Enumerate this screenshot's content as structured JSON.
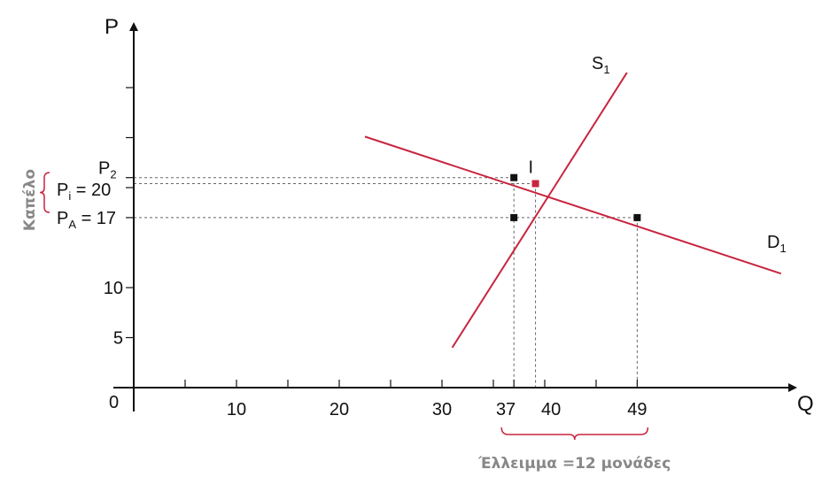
{
  "chart_data": {
    "type": "line",
    "xlabel": "Q",
    "ylabel": "P",
    "origin_label": "0",
    "x_ticks": [
      {
        "value": 5,
        "label": ""
      },
      {
        "value": 10,
        "label": "10"
      },
      {
        "value": 15,
        "label": ""
      },
      {
        "value": 20,
        "label": "20"
      },
      {
        "value": 25,
        "label": ""
      },
      {
        "value": 30,
        "label": "30"
      },
      {
        "value": 35,
        "label": ""
      },
      {
        "value": 37,
        "label": "37"
      },
      {
        "value": 40,
        "label": "40"
      },
      {
        "value": 45,
        "label": ""
      },
      {
        "value": 49,
        "label": "49"
      }
    ],
    "y_ticks": [
      {
        "value": 5,
        "label": "5"
      },
      {
        "value": 10,
        "label": "10"
      },
      {
        "value": 17,
        "label": ""
      },
      {
        "value": 20,
        "label": ""
      },
      {
        "value": 21,
        "label": ""
      },
      {
        "value": 25,
        "label": ""
      },
      {
        "value": 30,
        "label": ""
      }
    ],
    "xlim": [
      0,
      63
    ],
    "ylim": [
      0,
      35
    ],
    "series": [
      {
        "name": "S",
        "sub": "1",
        "color": "#c8253f",
        "points": [
          [
            31,
            4
          ],
          [
            48,
            31.5
          ]
        ]
      },
      {
        "name": "D",
        "sub": "1",
        "color": "#c8253f",
        "points": [
          [
            22.5,
            25.1
          ],
          [
            63,
            11.4
          ]
        ]
      }
    ],
    "price_labels": [
      {
        "main": "P",
        "sub": "2",
        "suffix": "",
        "value": 21
      },
      {
        "main": "P",
        "sub": "i",
        "suffix": " = 20",
        "value": 20
      },
      {
        "main": "P",
        "sub": "A",
        "suffix": " = 17",
        "value": 17
      }
    ],
    "points": [
      {
        "x": 37,
        "y": 21,
        "label": ""
      },
      {
        "x": 39.1,
        "y": 20.4,
        "label": "I"
      },
      {
        "x": 37,
        "y": 17,
        "label": ""
      },
      {
        "x": 49,
        "y": 17,
        "label": ""
      }
    ],
    "annotations": {
      "cap": "Καπέλο",
      "shortage": "Έλλειμμα =12 μονάδες",
      "shortage_from": 37,
      "shortage_to": 49
    },
    "colors": {
      "curve": "#c8253f",
      "axis": "#111111",
      "guide": "#666666",
      "label_grey": "#888888"
    }
  }
}
